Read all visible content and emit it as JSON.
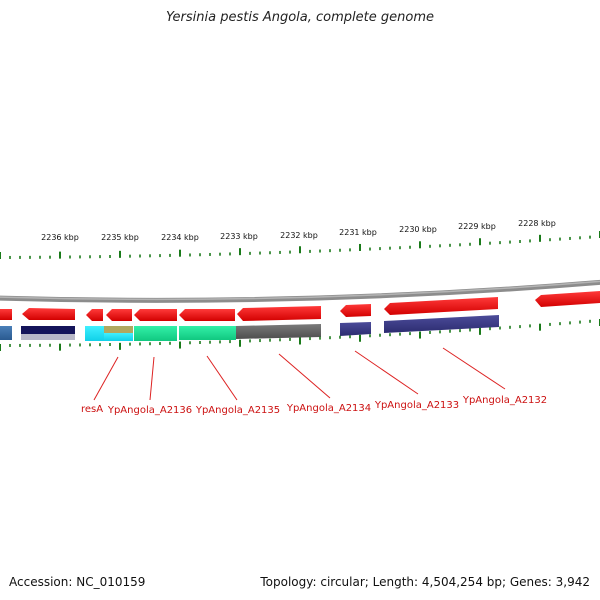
{
  "title": "Yersinia pestis Angola, complete genome",
  "footer": {
    "accession": "Accession: NC_010159",
    "summary": "Topology: circular; Length: 4,504,254 bp; Genes: 3,942"
  },
  "colors": {
    "backbone": "#8c8c8c",
    "cds_arrow": "#ee1111",
    "tick": "#1a7a1a",
    "label": "#cc1111"
  },
  "scale_labels": [
    "2236 kbp",
    "2235 kbp",
    "2234 kbp",
    "2233 kbp",
    "2232 kbp",
    "2231 kbp",
    "2230 kbp",
    "2229 kbp",
    "2228 kbp"
  ],
  "gene_labels": [
    "resA",
    "YpAngola_A2136",
    "YpAngola_A2135",
    "YpAngola_A2134",
    "YpAngola_A2133",
    "YpAngola_A2132"
  ]
}
